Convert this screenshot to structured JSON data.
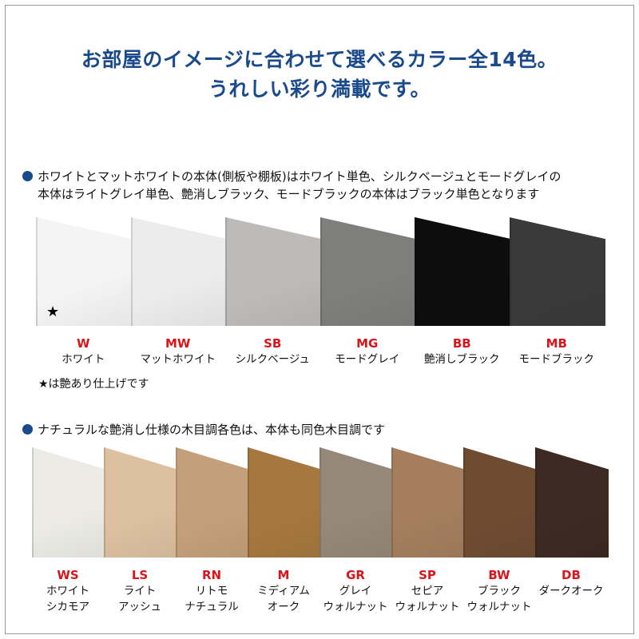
{
  "title": {
    "line1": "お部屋のイメージに合わせて選べるカラー全14色。",
    "line2": "うれしい彩り満載です。"
  },
  "section1": {
    "note_line1": "ホワイトとマットホワイトの本体(側板や棚板)はホワイト単色、シルクベージュとモードグレイの",
    "note_line2": "本体はライトグレイ単色、艶消しブラック、モードブラックの本体はブラック単色となります",
    "colors": [
      {
        "code": "W",
        "name": "ホワイト",
        "swatch": "#f4f4f4"
      },
      {
        "code": "MW",
        "name": "マットホワイト",
        "swatch": "#ececec"
      },
      {
        "code": "SB",
        "name": "シルクベージュ",
        "swatch": "#bdbbb9"
      },
      {
        "code": "MG",
        "name": "モードグレイ",
        "swatch": "#7e7f7d"
      },
      {
        "code": "BB",
        "name": "艶消しブラック",
        "swatch": "#0d0d0d"
      },
      {
        "code": "MB",
        "name": "モードブラック",
        "swatch": "#3a3a3a"
      }
    ],
    "star_mark": "★",
    "star_note": "★は艶あり仕上げです"
  },
  "section2": {
    "note": "ナチュラルな艶消し仕様の木目調各色は、本体も同色木目調です",
    "colors": [
      {
        "code": "WS",
        "name1": "ホワイト",
        "name2": "シカモア",
        "swatch": "#ecebe6"
      },
      {
        "code": "LS",
        "name1": "ライト",
        "name2": "アッシュ",
        "swatch": "#dcc0a0"
      },
      {
        "code": "RN",
        "name1": "リトモ",
        "name2": "ナチュラル",
        "swatch": "#c4a07a"
      },
      {
        "code": "M",
        "name1": "ミディアム",
        "name2": "オーク",
        "swatch": "#a6783f"
      },
      {
        "code": "GR",
        "name1": "グレイ",
        "name2": "ウォルナット",
        "swatch": "#958878"
      },
      {
        "code": "SP",
        "name1": "セピア",
        "name2": "ウォルナット",
        "swatch": "#a47e5e"
      },
      {
        "code": "BW",
        "name1": "ブラック",
        "name2": "ウォルナット",
        "swatch": "#6e4c32"
      },
      {
        "code": "DB",
        "name1": "ダークオーク",
        "name2": "",
        "swatch": "#3d2a22"
      }
    ]
  }
}
